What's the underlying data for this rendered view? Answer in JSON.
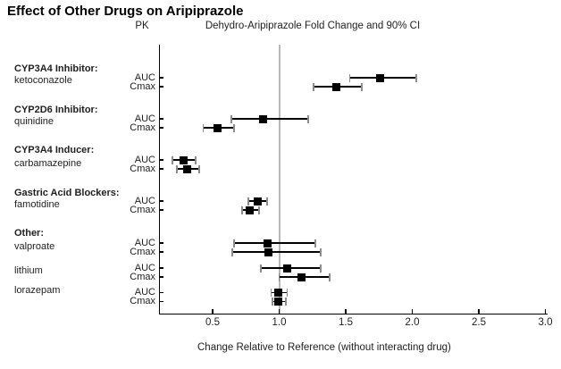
{
  "title": "Effect of Other Drugs on Aripiprazole",
  "chart_data": {
    "type": "forest",
    "title": "Effect of Other Drugs on Aripiprazole",
    "pk_column_header": "PK",
    "subtitle": "Dehydro-Aripiprazole Fold Change and 90% CI",
    "xlabel": "Change Relative to Reference (without interacting drug)",
    "ci_level": "90% CI",
    "x_ticks": [
      0.5,
      1.0,
      1.5,
      2.0,
      2.5,
      3.0
    ],
    "x_tick_labels": [
      "0.5",
      "1.0",
      "1.5",
      "2.0",
      "2.5",
      "3.0"
    ],
    "xlim": [
      0.1,
      3.05
    ],
    "reference_line_x": 1.0,
    "grid": false,
    "colors": {
      "marker": "#000000",
      "ci_line": "#000000",
      "ci_cap": "#8c8c8c",
      "reference_line": "#b8b8b8",
      "text": "#1f1f1f"
    },
    "groups": [
      {
        "header": "CYP3A4 Inhibitor:",
        "drugs": [
          {
            "name": "ketoconazole",
            "rows": [
              {
                "metric": "AUC",
                "value": 1.76,
                "lo": 1.53,
                "hi": 2.03
              },
              {
                "metric": "Cmax",
                "value": 1.43,
                "lo": 1.26,
                "hi": 1.62
              }
            ]
          }
        ]
      },
      {
        "header": "CYP2D6 Inhibitor:",
        "drugs": [
          {
            "name": "quinidine",
            "rows": [
              {
                "metric": "AUC",
                "value": 0.88,
                "lo": 0.64,
                "hi": 1.22
              },
              {
                "metric": "Cmax",
                "value": 0.54,
                "lo": 0.43,
                "hi": 0.66
              }
            ]
          }
        ]
      },
      {
        "header": "CYP3A4 Inducer:",
        "drugs": [
          {
            "name": "carbamazepine",
            "rows": [
              {
                "metric": "AUC",
                "value": 0.28,
                "lo": 0.2,
                "hi": 0.37
              },
              {
                "metric": "Cmax",
                "value": 0.31,
                "lo": 0.23,
                "hi": 0.4
              }
            ]
          }
        ]
      },
      {
        "header": "Gastric Acid Blockers:",
        "drugs": [
          {
            "name": "famotidine",
            "rows": [
              {
                "metric": "AUC",
                "value": 0.84,
                "lo": 0.77,
                "hi": 0.91
              },
              {
                "metric": "Cmax",
                "value": 0.78,
                "lo": 0.72,
                "hi": 0.85
              }
            ]
          }
        ]
      },
      {
        "header": "Other:",
        "drugs": [
          {
            "name": "valproate",
            "rows": [
              {
                "metric": "AUC",
                "value": 0.91,
                "lo": 0.66,
                "hi": 1.27
              },
              {
                "metric": "Cmax",
                "value": 0.92,
                "lo": 0.65,
                "hi": 1.31
              }
            ]
          },
          {
            "name": "lithium",
            "rows": [
              {
                "metric": "AUC",
                "value": 1.06,
                "lo": 0.86,
                "hi": 1.31
              },
              {
                "metric": "Cmax",
                "value": 1.17,
                "lo": 1.0,
                "hi": 1.38
              }
            ]
          },
          {
            "name": "lorazepam",
            "rows": [
              {
                "metric": "AUC",
                "value": 0.99,
                "lo": 0.94,
                "hi": 1.06
              },
              {
                "metric": "Cmax",
                "value": 0.99,
                "lo": 0.95,
                "hi": 1.05
              }
            ]
          }
        ]
      }
    ]
  }
}
